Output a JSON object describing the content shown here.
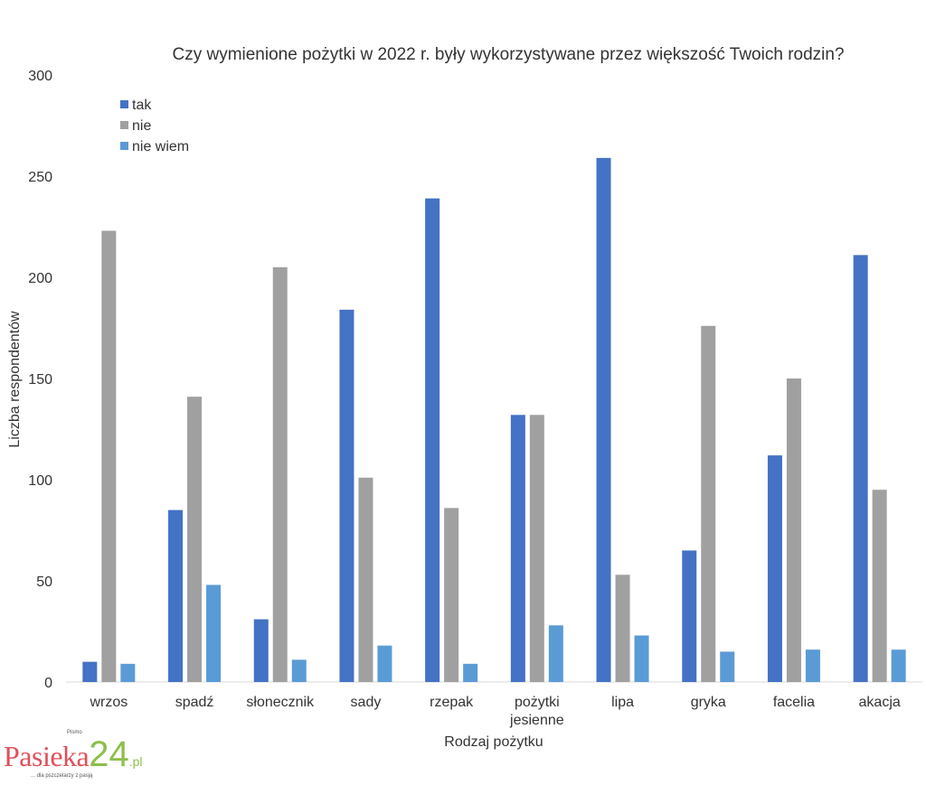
{
  "chart_data": {
    "type": "bar",
    "title": "Czy wymienione pożytki w 2022 r. były wykorzystywane przez większość Twoich rodzin?",
    "xlabel": "Rodzaj pożytku",
    "ylabel": "Liczba respondentów",
    "ylim": [
      0,
      300
    ],
    "yticks": [
      0,
      50,
      100,
      150,
      200,
      250,
      300
    ],
    "grid": false,
    "legend_position": "top-left",
    "categories": [
      "wrzos",
      "spadź",
      "słonecznik",
      "sady",
      "rzepak",
      "pożytki jesienne",
      "lipa",
      "gryka",
      "facelia",
      "akacja"
    ],
    "series": [
      {
        "name": "tak",
        "color": "#4472C4",
        "values": [
          10,
          85,
          31,
          184,
          239,
          132,
          259,
          65,
          112,
          211
        ]
      },
      {
        "name": "nie",
        "color": "#A0A0A0",
        "values": [
          223,
          141,
          205,
          101,
          86,
          132,
          53,
          176,
          150,
          95
        ]
      },
      {
        "name": "nie wiem",
        "color": "#5B9BD5",
        "values": [
          9,
          48,
          11,
          18,
          9,
          28,
          23,
          15,
          16,
          16
        ]
      }
    ]
  },
  "logo": {
    "small": "Pismo",
    "name": "Pasieka",
    "number": "24",
    "domain": ".pl",
    "tagline": "... dla pszczelarzy z pasją"
  }
}
